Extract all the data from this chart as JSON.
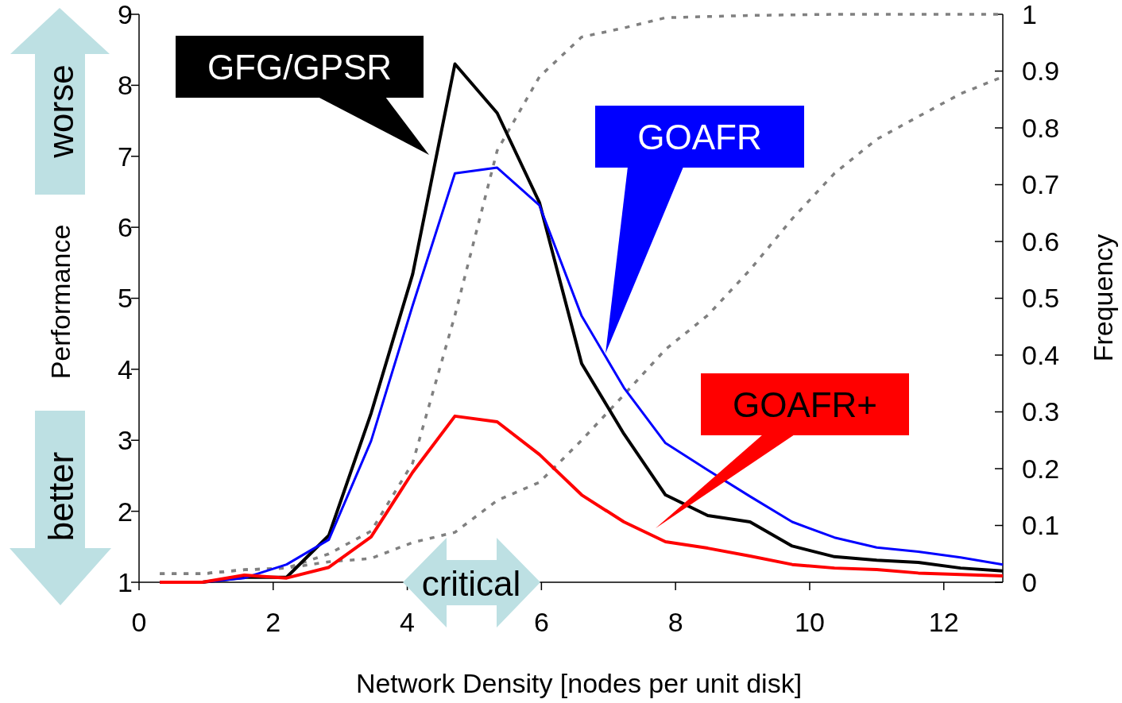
{
  "chart_data": {
    "type": "line",
    "xlabel": "Network Density [nodes per unit disk]",
    "ylabel": "Performance",
    "y2label": "Frequency",
    "x": [
      0.31,
      0.94,
      1.57,
      2.2,
      2.83,
      3.46,
      4.08,
      4.71,
      5.34,
      5.97,
      6.6,
      7.23,
      7.85,
      8.48,
      9.11,
      9.74,
      10.37,
      11.0,
      11.62,
      12.25,
      12.88
    ],
    "xlim": [
      0,
      12.88
    ],
    "xticks": [
      0,
      2,
      4,
      6,
      8,
      10,
      12
    ],
    "ylim": [
      1,
      9
    ],
    "yticks": [
      1,
      2,
      3,
      4,
      5,
      6,
      7,
      8,
      9
    ],
    "y2lim": [
      0,
      1
    ],
    "y2ticks": [
      0,
      0.1,
      0.2,
      0.3,
      0.4,
      0.5,
      0.6,
      0.7,
      0.8,
      0.9,
      1
    ],
    "grid": false,
    "series": [
      {
        "axis": "y2",
        "color": "#808080",
        "line_style": "dotted",
        "values": [
          0.015,
          0.015,
          0.022,
          0.025,
          0.05,
          0.09,
          0.21,
          0.47,
          0.76,
          0.89,
          0.96,
          0.976,
          0.994,
          0.996,
          0.998,
          0.999,
          1,
          1,
          1,
          1,
          1
        ]
      },
      {
        "axis": "y2",
        "color": "#808080",
        "line_style": "dotted",
        "values": [
          0.015,
          0.015,
          0.022,
          0.025,
          0.036,
          0.042,
          0.07,
          0.088,
          0.144,
          0.176,
          0.25,
          0.33,
          0.41,
          0.47,
          0.55,
          0.64,
          0.72,
          0.78,
          0.82,
          0.86,
          0.89
        ]
      },
      {
        "name": "GFG/GPSR",
        "color": "#000000",
        "values": [
          1.0,
          1.0,
          1.07,
          1.07,
          1.66,
          3.38,
          5.34,
          8.3,
          7.61,
          6.35,
          4.08,
          3.09,
          2.23,
          1.94,
          1.85,
          1.51,
          1.36,
          1.31,
          1.28,
          1.2,
          1.16
        ]
      },
      {
        "name": "GOAFR",
        "color": "#0000ff",
        "values": [
          1.0,
          1.0,
          1.06,
          1.25,
          1.6,
          2.99,
          4.9,
          6.76,
          6.84,
          6.31,
          4.75,
          3.74,
          2.96,
          2.58,
          2.21,
          1.85,
          1.63,
          1.49,
          1.43,
          1.35,
          1.25
        ]
      },
      {
        "name": "GOAFR+",
        "color": "#ff0000",
        "values": [
          1.0,
          1.0,
          1.1,
          1.06,
          1.21,
          1.64,
          2.55,
          3.34,
          3.26,
          2.8,
          2.23,
          1.85,
          1.57,
          1.48,
          1.37,
          1.25,
          1.2,
          1.18,
          1.13,
          1.11,
          1.09
        ]
      }
    ],
    "annotations": [
      "worse",
      "better",
      "critical"
    ]
  }
}
